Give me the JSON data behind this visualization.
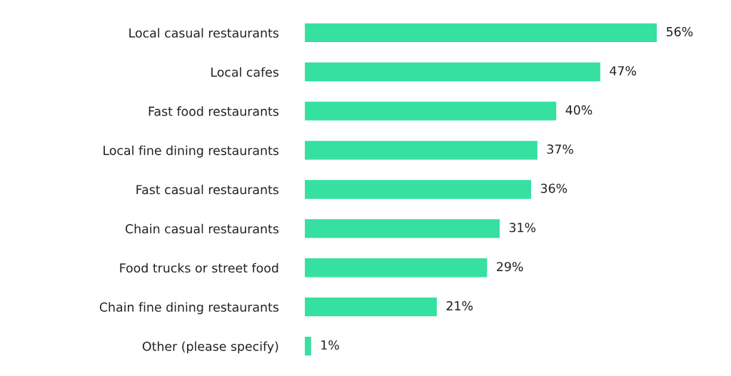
{
  "chart_data": {
    "type": "bar",
    "orientation": "horizontal",
    "categories": [
      "Local casual restaurants",
      "Local cafes",
      "Fast food restaurants",
      "Local fine dining restaurants",
      "Fast casual restaurants",
      "Chain casual restaurants",
      "Food trucks or street food",
      "Chain fine dining restaurants",
      "Other (please specify)"
    ],
    "values": [
      56,
      47,
      40,
      37,
      36,
      31,
      29,
      21,
      1
    ],
    "value_labels": [
      "56%",
      "47%",
      "40%",
      "37%",
      "36%",
      "31%",
      "29%",
      "21%",
      "1%"
    ],
    "color": "#35e0a1",
    "grid": false,
    "legend": false,
    "tick_labels": "y"
  }
}
